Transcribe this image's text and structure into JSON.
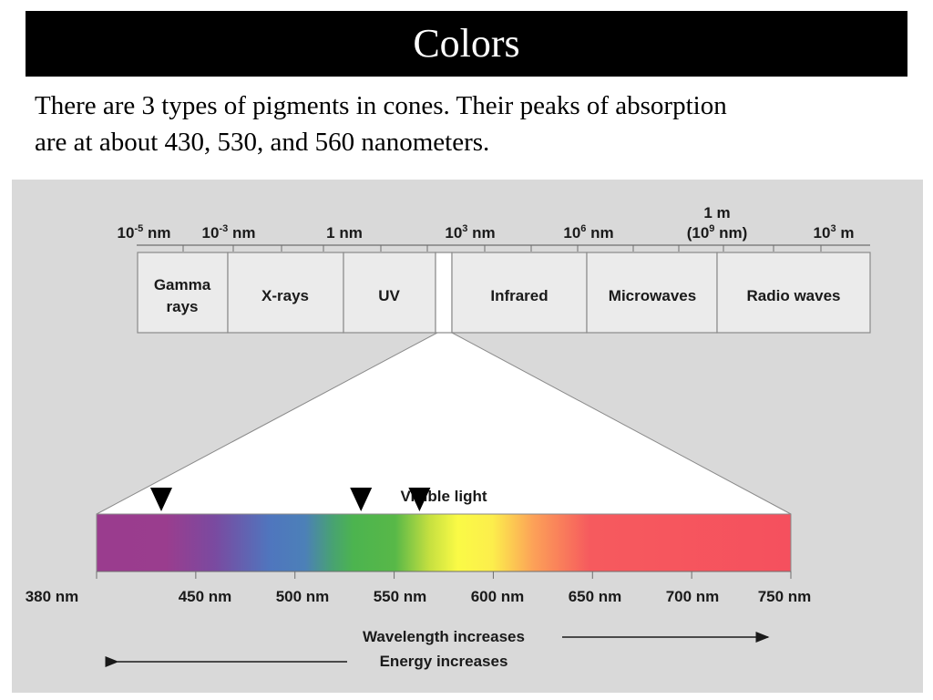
{
  "slide": {
    "title": "Colors",
    "body_line1": "There are 3 types of pigments in cones. Their peaks of absorption",
    "body_line2": "are at about 430, 530, and 560 nanometers."
  },
  "spectrum": {
    "scale_labels": [
      {
        "base": "10",
        "sup": "-5",
        "unit": " nm"
      },
      {
        "base": "10",
        "sup": "-3",
        "unit": " nm"
      },
      {
        "base": "1 nm",
        "sup": "",
        "unit": ""
      },
      {
        "base": "10",
        "sup": "3",
        "unit": " nm"
      },
      {
        "base": "10",
        "sup": "6",
        "unit": " nm"
      },
      {
        "base": "10",
        "sup": "3",
        "unit": " m"
      }
    ],
    "one_m_label": "1 m",
    "one_m_sub": {
      "open": "(10",
      "sup": "9",
      "close": " nm)"
    },
    "regions": [
      {
        "name": "Gamma",
        "name2": "rays"
      },
      {
        "name": "X-rays"
      },
      {
        "name": "UV"
      },
      {
        "name": "Infrared"
      },
      {
        "name": "Microwaves"
      },
      {
        "name": "Radio waves"
      }
    ]
  },
  "visible": {
    "label": "Visible light",
    "axis_ticks": [
      "380 nm",
      "450 nm",
      "500 nm",
      "550 nm",
      "600 nm",
      "650 nm",
      "700 nm",
      "750 nm"
    ],
    "peak_markers_nm": [
      430,
      530,
      560
    ],
    "wavelength_note": "Wavelength increases",
    "energy_note": "Energy increases"
  }
}
